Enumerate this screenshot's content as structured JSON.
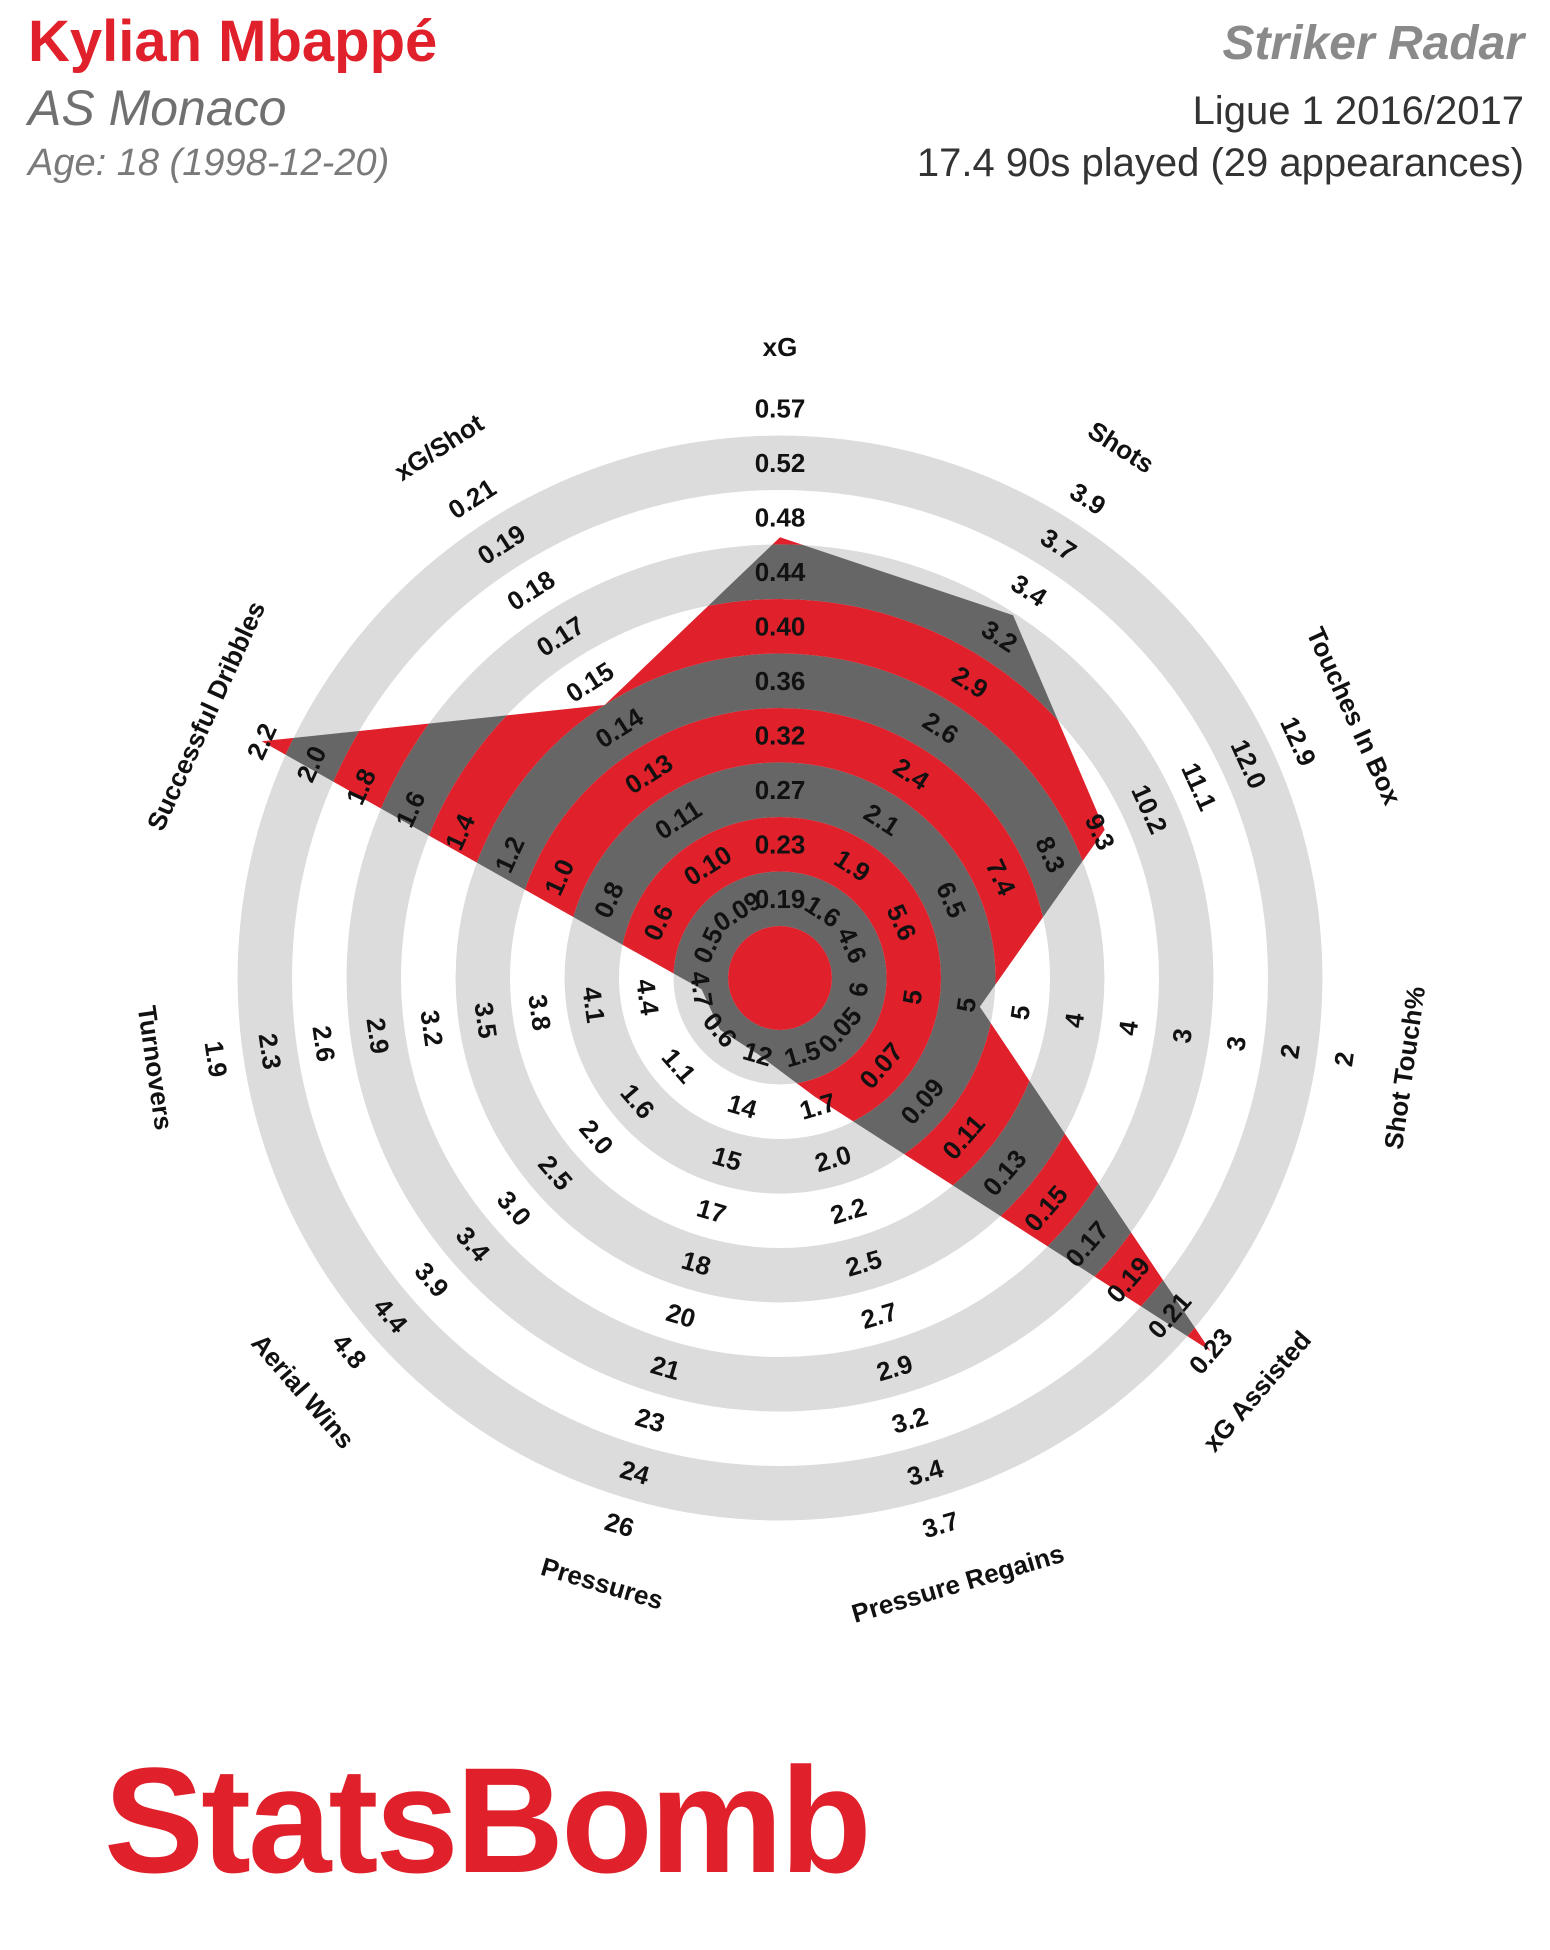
{
  "header": {
    "player_name": "Kylian Mbappé",
    "team": "AS Monaco",
    "age_line": "Age: 18 (1998-12-20)",
    "radar_title": "Striker Radar",
    "competition": "Ligue 1 2016/2017",
    "minutes": "17.4 90s played (29 appearances)"
  },
  "logo_text": "StatsBomb",
  "colors": {
    "ring_light": "#dcdcdc",
    "ring_dark": "#666666",
    "accent": "#e0202b"
  },
  "chart_data": {
    "type": "radar",
    "title": "Striker Radar",
    "rings": 10,
    "metrics": [
      {
        "label": "xG",
        "ticks": [
          "0.19",
          "0.23",
          "0.27",
          "0.32",
          "0.36",
          "0.40",
          "0.44",
          "0.48",
          "0.52",
          "0.57"
        ],
        "value": 0.47
      },
      {
        "label": "Shots",
        "ticks": [
          "1.6",
          "1.9",
          "2.1",
          "2.4",
          "2.6",
          "2.9",
          "3.2",
          "3.4",
          "3.7",
          "3.9"
        ],
        "value": 3.25
      },
      {
        "label": "Touches In Box",
        "ticks": [
          "4.6",
          "5.6",
          "6.5",
          "7.4",
          "8.3",
          "9.3",
          "10.2",
          "11.1",
          "12.0",
          "12.9"
        ],
        "value": 9.3
      },
      {
        "label": "Shot Touch%",
        "ticks": [
          "6",
          "5",
          "5",
          "5",
          "4",
          "4",
          "3",
          "3",
          "2",
          "2"
        ],
        "value": 5
      },
      {
        "label": "xG Assisted",
        "ticks": [
          "0.05",
          "0.07",
          "0.09",
          "0.11",
          "0.13",
          "0.15",
          "0.17",
          "0.19",
          "0.21",
          "0.23"
        ],
        "value": 0.23
      },
      {
        "label": "Pressure Regains",
        "ticks": [
          "1.5",
          "1.7",
          "2.0",
          "2.2",
          "2.5",
          "2.7",
          "2.9",
          "3.2",
          "3.4",
          "3.7"
        ],
        "value": 1.7
      },
      {
        "label": "Pressures",
        "ticks": [
          "12",
          "14",
          "15",
          "17",
          "18",
          "20",
          "21",
          "23",
          "24",
          "26"
        ],
        "value": 12
      },
      {
        "label": "Aerial Wins",
        "ticks": [
          "0.6",
          "1.1",
          "1.6",
          "2.0",
          "2.5",
          "3.0",
          "3.4",
          "3.9",
          "4.4",
          "4.8"
        ],
        "value": 0.6
      },
      {
        "label": "Turnovers",
        "ticks": [
          "4.7",
          "4.4",
          "4.1",
          "3.8",
          "3.5",
          "3.2",
          "2.9",
          "2.6",
          "2.3",
          "1.9"
        ],
        "value": 4.7
      },
      {
        "label": "Successful Dribbles",
        "ticks": [
          "0.5",
          "0.6",
          "0.8",
          "1.0",
          "1.2",
          "1.4",
          "1.6",
          "1.8",
          "2.0",
          "2.2"
        ],
        "value": 2.2
      },
      {
        "label": "xG/Shot",
        "ticks": [
          "0.09",
          "0.10",
          "0.11",
          "0.13",
          "0.14",
          "0.15",
          "0.17",
          "0.18",
          "0.19",
          "0.21"
        ],
        "value": 0.15
      }
    ]
  }
}
